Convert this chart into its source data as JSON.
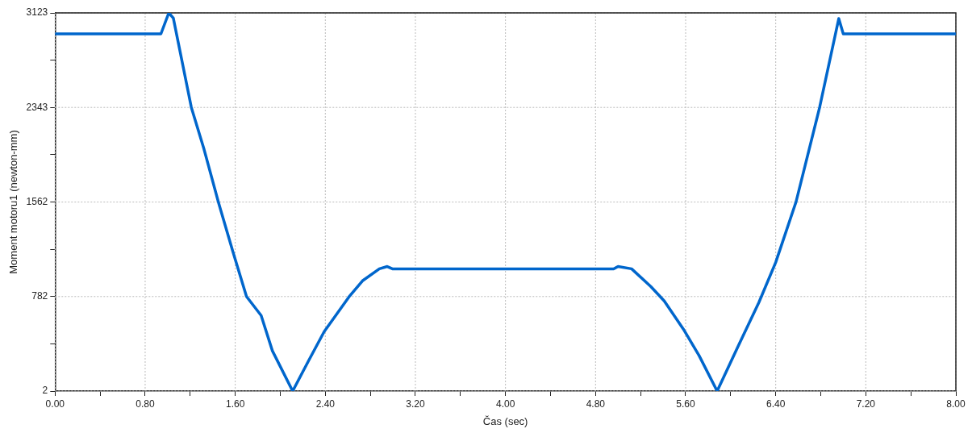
{
  "chart_data": {
    "type": "line",
    "xlabel": "Čas (sec)",
    "ylabel": "Moment motoru1 (newton-mm)",
    "grid": true,
    "marker": "none",
    "line_style": "solid",
    "legend": false,
    "xlim": [
      0,
      8
    ],
    "ylim": [
      2,
      3123
    ],
    "xticks": [
      {
        "value": 0,
        "label": "0.00"
      },
      {
        "value": 0.4,
        "label": null
      },
      {
        "value": 0.8,
        "label": "0.80"
      },
      {
        "value": 1.2,
        "label": null
      },
      {
        "value": 1.6,
        "label": "1.60"
      },
      {
        "value": 2.0,
        "label": null
      },
      {
        "value": 2.4,
        "label": "2.40"
      },
      {
        "value": 2.8,
        "label": null
      },
      {
        "value": 3.2,
        "label": "3.20"
      },
      {
        "value": 3.6,
        "label": null
      },
      {
        "value": 4.0,
        "label": "4.00"
      },
      {
        "value": 4.4,
        "label": null
      },
      {
        "value": 4.8,
        "label": "4.80"
      },
      {
        "value": 5.2,
        "label": null
      },
      {
        "value": 5.6,
        "label": "5.60"
      },
      {
        "value": 6.0,
        "label": null
      },
      {
        "value": 6.4,
        "label": "6.40"
      },
      {
        "value": 6.8,
        "label": null
      },
      {
        "value": 7.2,
        "label": "7.20"
      },
      {
        "value": 7.6,
        "label": null
      },
      {
        "value": 8.0,
        "label": "8.00"
      }
    ],
    "yticks": [
      2,
      {
        "value": 392,
        "label": null
      },
      782,
      {
        "value": 1172,
        "label": null
      },
      1562,
      {
        "value": 1952,
        "label": null
      },
      2343,
      {
        "value": 2733,
        "label": null
      },
      3123
    ],
    "series": [
      {
        "color": "#0066cc",
        "x": [
          0,
          0.94,
          1.01,
          1.05,
          1.21,
          1.32,
          1.45,
          1.58,
          1.7,
          1.83,
          1.93,
          2.11,
          2.25,
          2.39,
          2.61,
          2.73,
          2.88,
          2.95,
          3.0,
          4.96,
          5.0,
          5.12,
          5.29,
          5.41,
          5.58,
          5.72,
          5.88,
          6.06,
          6.25,
          6.4,
          6.58,
          6.79,
          6.96,
          7.0,
          8.0
        ],
        "values": [
          2950,
          2950,
          3123,
          3080,
          2343,
          2007,
          1562,
          1150,
          782,
          626,
          334,
          2,
          250,
          493,
          779,
          912,
          1011,
          1030,
          1010,
          1010,
          1030,
          1011,
          865,
          746,
          513,
          294,
          2,
          360,
          732,
          1064,
          1562,
          2343,
          3076,
          2950,
          2950
        ]
      }
    ]
  }
}
